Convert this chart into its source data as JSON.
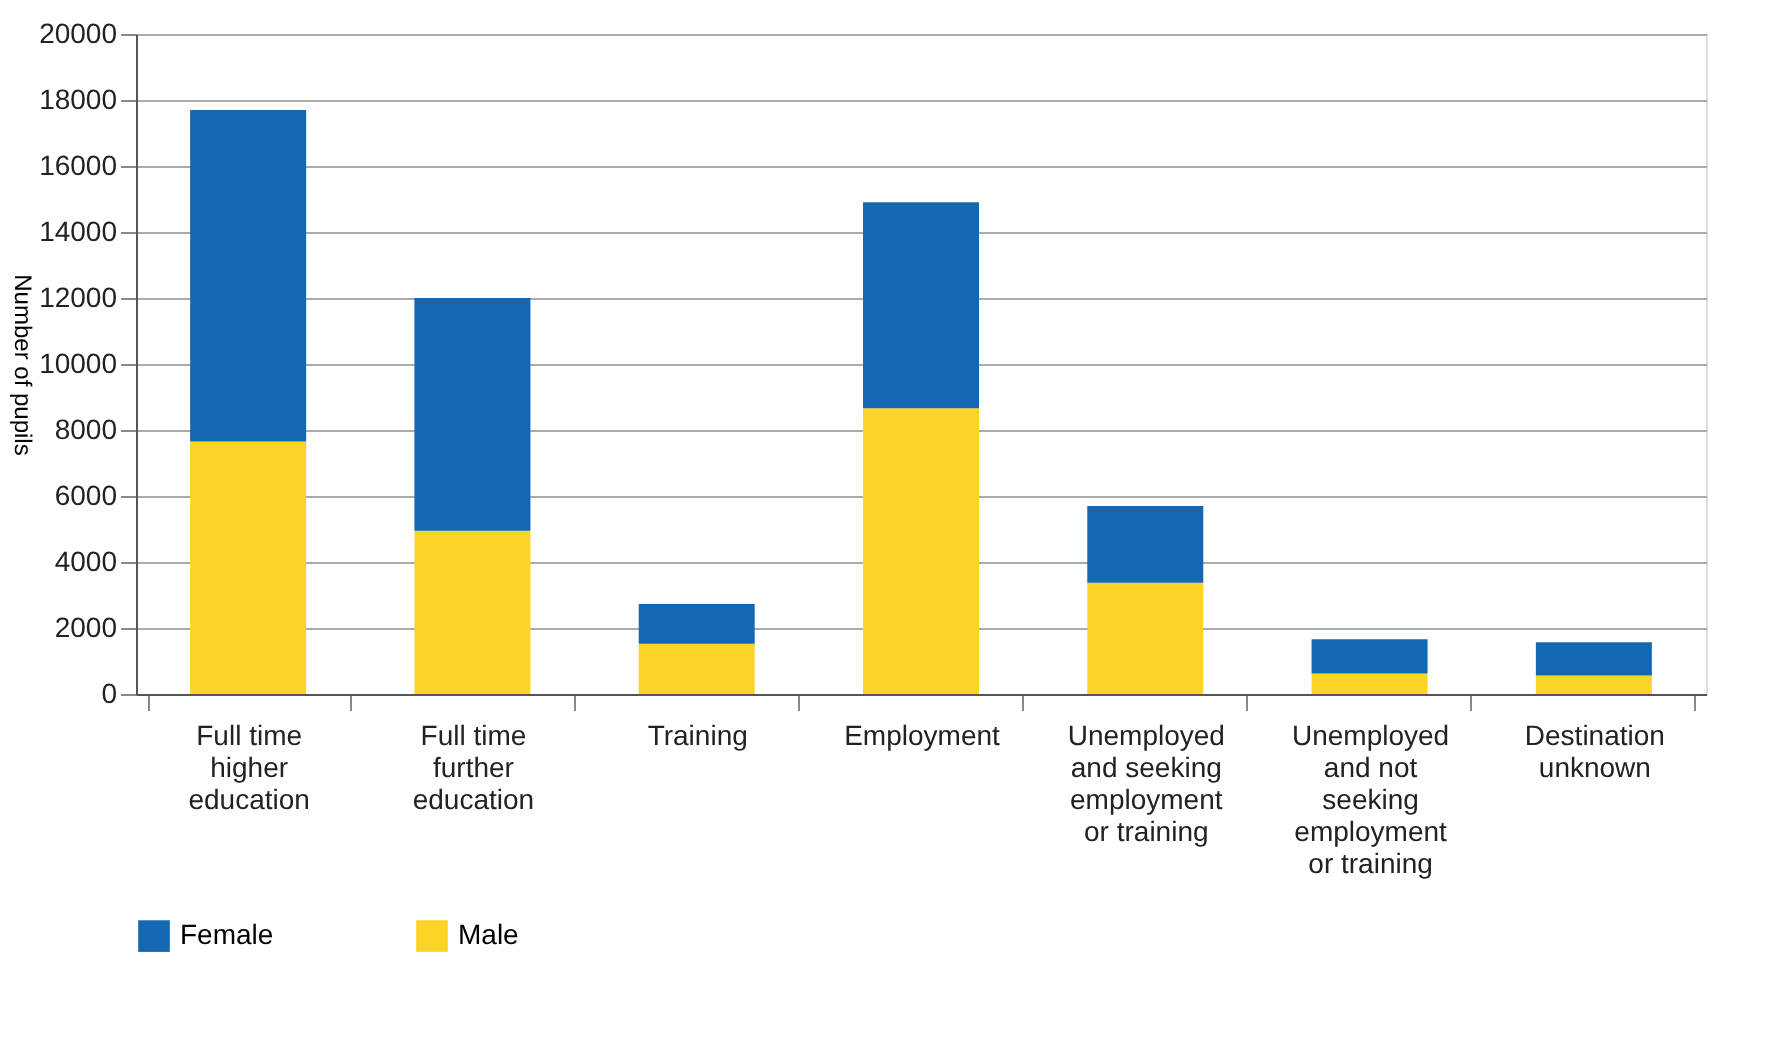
{
  "chart_data": {
    "type": "bar",
    "stacked": true,
    "ylabel": "Number of pupils",
    "categories": [
      "Full time higher education",
      "Full time further education",
      "Training",
      "Employment",
      "Unemployed and seeking employment or training",
      "Unemployed and not seeking employment or training",
      "Destination unknown"
    ],
    "series": [
      {
        "name": "Male",
        "color": "#fdd425",
        "values": [
          7650,
          4950,
          1520,
          8660,
          3370,
          620,
          560
        ]
      },
      {
        "name": "Female",
        "color": "#1467b3",
        "values": [
          10050,
          7050,
          1210,
          6240,
          2330,
          1040,
          1010
        ]
      }
    ],
    "ylim": [
      0,
      20000
    ],
    "yticks": [
      0,
      2000,
      4000,
      6000,
      8000,
      10000,
      12000,
      14000,
      16000,
      18000,
      20000
    ],
    "grid": "y",
    "legend": "bottom left"
  }
}
